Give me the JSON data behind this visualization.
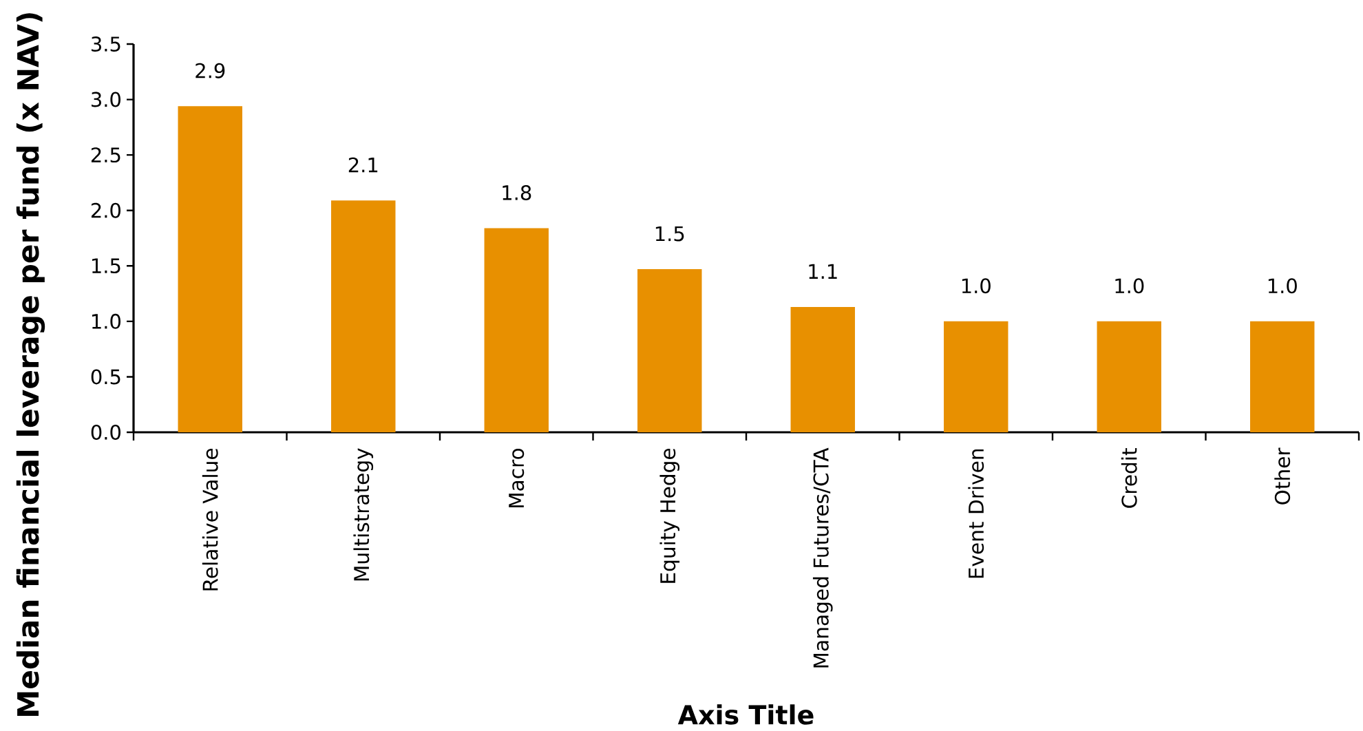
{
  "chart_data": {
    "type": "bar",
    "ylabel": "Median financial leverage per fund (x NAV)",
    "xlabel": "Axis Title",
    "categories": [
      "Relative Value",
      "Multistrategy",
      "Macro",
      "Equity Hedge",
      "Managed Futures/CTA",
      "Event Driven",
      "Credit",
      "Other"
    ],
    "values": [
      2.94,
      2.09,
      1.84,
      1.47,
      1.13,
      1.0,
      1.0,
      1.0
    ],
    "value_labels": [
      "2.9",
      "2.1",
      "1.8",
      "1.5",
      "1.1",
      "1.0",
      "1.0",
      "1.0"
    ],
    "color": "#e89000",
    "ylim": [
      0,
      3.5
    ],
    "yticks": [
      {
        "value": 0,
        "label": "0.0"
      },
      0.5,
      {
        "value": 1,
        "label": "1.0"
      },
      1.5,
      {
        "value": 2,
        "label": "2.0"
      },
      2.5,
      {
        "value": 3,
        "label": "3.0"
      },
      3.5
    ]
  }
}
